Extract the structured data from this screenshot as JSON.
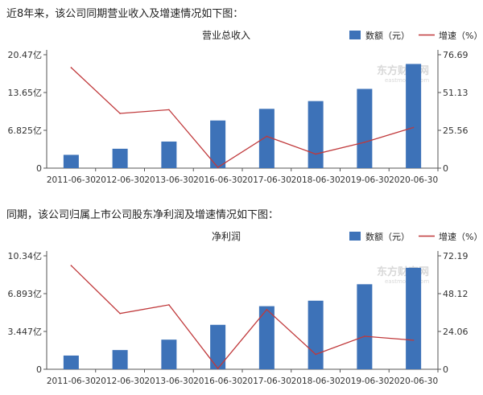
{
  "headings": [
    "近8年来，该公司同期营业收入及增速情况如下图：",
    "同期，该公司归属上市公司股东净利润及增速情况如下图："
  ],
  "colors": {
    "bar": "#3d72b8",
    "line": "#c0393b",
    "axis": "#555555",
    "grid": "#dddddd"
  },
  "watermark": {
    "cn": "东方财富网",
    "en": "eastmoney.com"
  },
  "chart_data": [
    {
      "type": "bar+line",
      "title": "营业总收入",
      "categories": [
        "2011-06-30",
        "2012-06-30",
        "2013-06-30",
        "2016-06-30",
        "2017-06-30",
        "2018-06-30",
        "2019-06-30",
        "2020-06-30"
      ],
      "series": [
        {
          "name": "数额（元）",
          "type": "bar",
          "axis": "left",
          "values": [
            2.4,
            3.5,
            4.8,
            8.6,
            10.7,
            12.1,
            14.3,
            18.8
          ]
        },
        {
          "name": "增速（%）",
          "type": "line",
          "axis": "right",
          "values": [
            68,
            37,
            39.5,
            0.5,
            21.5,
            9.5,
            17.5,
            27.5
          ]
        }
      ],
      "left_axis": {
        "ticks": [
          "0",
          "6.825亿",
          "13.65亿",
          "20.47亿"
        ],
        "max": 20.47
      },
      "right_axis": {
        "ticks": [
          "0",
          "25.56",
          "51.13",
          "76.69"
        ],
        "max": 76.69
      }
    },
    {
      "type": "bar+line",
      "title": "净利润",
      "categories": [
        "2011-06-30",
        "2012-06-30",
        "2013-06-30",
        "2016-06-30",
        "2017-06-30",
        "2018-06-30",
        "2019-06-30",
        "2020-06-30"
      ],
      "series": [
        {
          "name": "数额（元）",
          "type": "bar",
          "axis": "left",
          "values": [
            1.25,
            1.75,
            2.7,
            4.05,
            5.75,
            6.25,
            7.75,
            9.25
          ]
        },
        {
          "name": "增速（%）",
          "type": "line",
          "axis": "right",
          "values": [
            66,
            35.5,
            41,
            0.5,
            38,
            9.5,
            21,
            18.5
          ]
        }
      ],
      "left_axis": {
        "ticks": [
          "0",
          "3.447亿",
          "6.893亿",
          "10.34亿"
        ],
        "max": 10.34
      },
      "right_axis": {
        "ticks": [
          "0",
          "24.06",
          "48.12",
          "72.19"
        ],
        "max": 72.19
      }
    }
  ]
}
